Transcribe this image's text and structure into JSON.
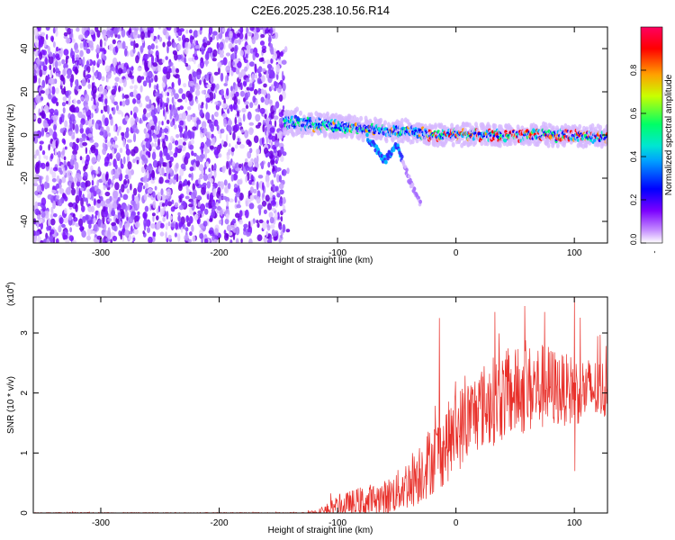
{
  "title": "C2E6.2025.238.10.56.R14",
  "chart_data": [
    {
      "type": "heatmap",
      "name": "spectrogram",
      "xlabel": "Height of straight line (km)",
      "ylabel": "Frequency (Hz)",
      "xlim": [
        -357,
        128
      ],
      "ylim": [
        -50,
        50
      ],
      "xticks": [
        -300,
        -200,
        -100,
        0,
        100
      ],
      "yticks": [
        -40,
        -20,
        0,
        20,
        40
      ],
      "noise_region_km": [
        -357,
        -145
      ],
      "doppler_trace": {
        "x": [
          -145,
          -120,
          -100,
          -80,
          -60,
          -40,
          -20,
          0,
          40,
          80,
          128
        ],
        "center_hz": [
          6,
          5,
          4,
          3,
          2,
          2,
          0,
          0,
          0,
          0,
          -1
        ],
        "halfwidth_hz": [
          4,
          3.5,
          3.5,
          3,
          3,
          3,
          3,
          3,
          3,
          3,
          3
        ]
      },
      "side_streak": {
        "x": [
          -75,
          -70,
          -65,
          -60,
          -55,
          -50,
          -40,
          -30
        ],
        "center_hz": [
          -1,
          -4,
          -8,
          -12,
          -8,
          -4,
          -20,
          -32
        ]
      },
      "colorbar": {
        "label": "Normalized spectral amplitude",
        "range": [
          0,
          1
        ],
        "ticks": [
          "0.0",
          "0.2",
          "0.4",
          "0.6",
          "0.8"
        ],
        "tick_values": [
          0.0,
          0.2,
          0.4,
          0.6,
          0.8
        ],
        "bottom_tick_labels": [
          "0.0",
          "-"
        ],
        "colors": [
          "#ffffff",
          "#7b00ff",
          "#0000ff",
          "#00a0ff",
          "#00ff66",
          "#c8ff00",
          "#ffa000",
          "#ff0000"
        ]
      }
    },
    {
      "type": "line",
      "name": "snr",
      "xlabel": "Height of straight line (km)",
      "ylabel": "SNR (10 * v/v)",
      "y_multiplier": "(x10",
      "y_multiplier_exp": "4",
      "y_multiplier_close": ")",
      "xlim": [
        -357,
        128
      ],
      "ylim": [
        0,
        3.6
      ],
      "xticks": [
        -300,
        -200,
        -100,
        0,
        100
      ],
      "yticks": [
        0,
        1,
        2,
        3
      ],
      "line_color": "#e8302a",
      "envelope": {
        "x": [
          -357,
          -130,
          -115,
          -100,
          -80,
          -60,
          -50,
          -40,
          -30,
          -20,
          -10,
          0,
          10,
          20,
          30,
          40,
          50,
          60,
          70,
          80,
          90,
          100,
          110,
          128
        ],
        "baseline": [
          0.0,
          0.0,
          0.02,
          0.07,
          0.15,
          0.25,
          0.35,
          0.5,
          0.7,
          0.9,
          1.1,
          1.35,
          1.55,
          1.75,
          1.85,
          1.95,
          2.0,
          2.05,
          2.1,
          2.1,
          2.05,
          2.05,
          2.05,
          2.05
        ],
        "amplitude": [
          0.01,
          0.01,
          0.06,
          0.22,
          0.3,
          0.3,
          0.35,
          0.45,
          0.55,
          0.6,
          0.65,
          0.7,
          0.7,
          0.7,
          0.75,
          0.75,
          0.75,
          0.75,
          0.75,
          0.7,
          0.6,
          0.6,
          0.55,
          0.5
        ]
      },
      "spikes": [
        {
          "x": -14,
          "y": 3.25
        },
        {
          "x": 33,
          "y": 3.35
        },
        {
          "x": 58,
          "y": 3.45
        },
        {
          "x": 75,
          "y": 3.35
        },
        {
          "x": 100,
          "y": 3.6
        },
        {
          "x": 100.5,
          "y": 0.7
        }
      ]
    }
  ]
}
